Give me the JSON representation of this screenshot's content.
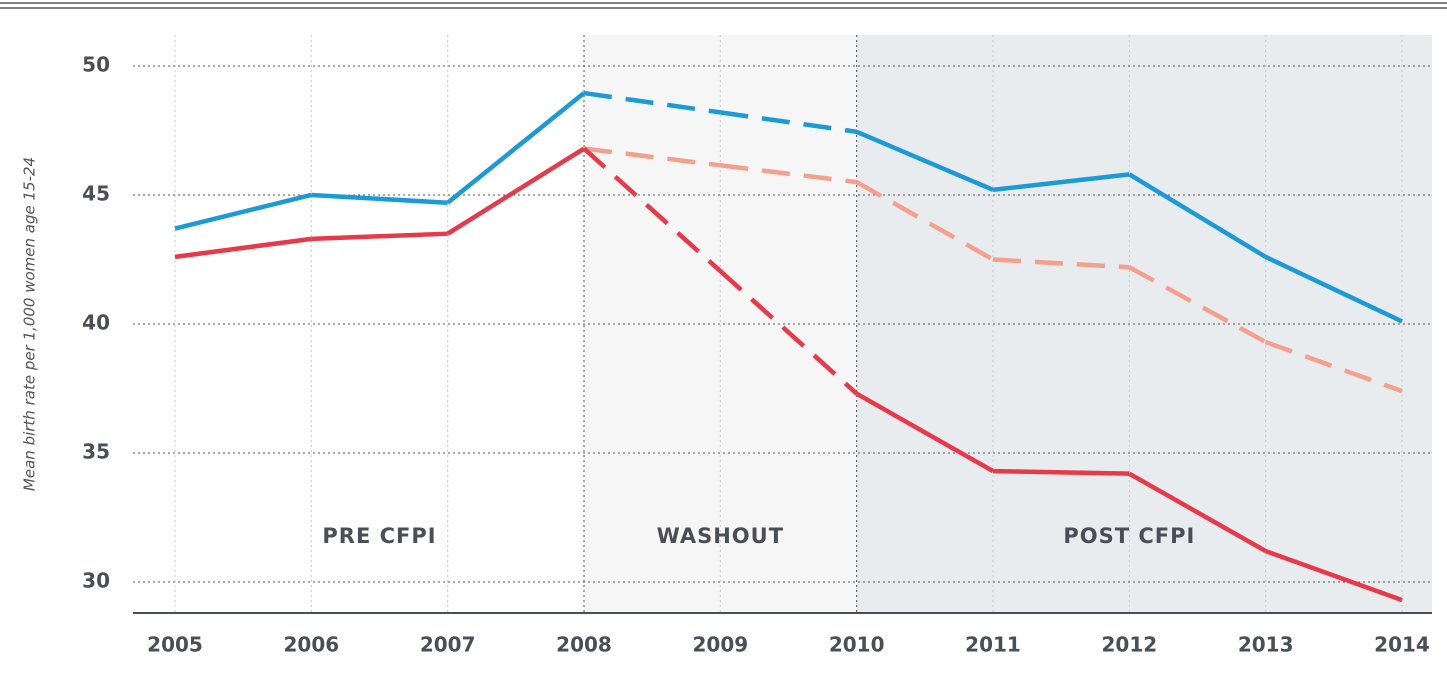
{
  "chart_data": {
    "type": "line",
    "y_label": "Mean birth rate per 1,000 women age 15-24",
    "categories": [
      "2005",
      "2006",
      "2007",
      "2008",
      "2009",
      "2010",
      "2011",
      "2012",
      "2013",
      "2014"
    ],
    "ylim": [
      28.8,
      51.2
    ],
    "yticks": [
      30,
      35,
      40,
      45,
      50
    ],
    "grid": true,
    "regions": [
      {
        "label": "PRE CFPI",
        "from": "2005",
        "to": "2008",
        "fill": "#ffffff",
        "dashed": false
      },
      {
        "label": "WASHOUT",
        "from": "2008",
        "to": "2010",
        "fill": "#f6f6f6",
        "dashed": true
      },
      {
        "label": "POST CFPI",
        "from": "2010",
        "to": "2014",
        "fill": "#e9ecef",
        "dashed": false
      }
    ],
    "series": [
      {
        "color": "#f4a08c",
        "dash": true,
        "values": [
          null,
          null,
          null,
          46.8,
          46.15,
          45.5,
          42.5,
          42.2,
          39.3,
          37.4
        ]
      },
      {
        "color": "#1a9ad6",
        "dash": false,
        "values": [
          43.7,
          45.0,
          44.7,
          48.95,
          48.2,
          47.45,
          45.2,
          45.8,
          42.6,
          40.1
        ]
      },
      {
        "color": "#e8384a",
        "dash": false,
        "values": [
          42.6,
          43.3,
          43.5,
          46.8,
          42.05,
          37.3,
          34.3,
          34.2,
          31.2,
          29.3
        ]
      }
    ]
  }
}
